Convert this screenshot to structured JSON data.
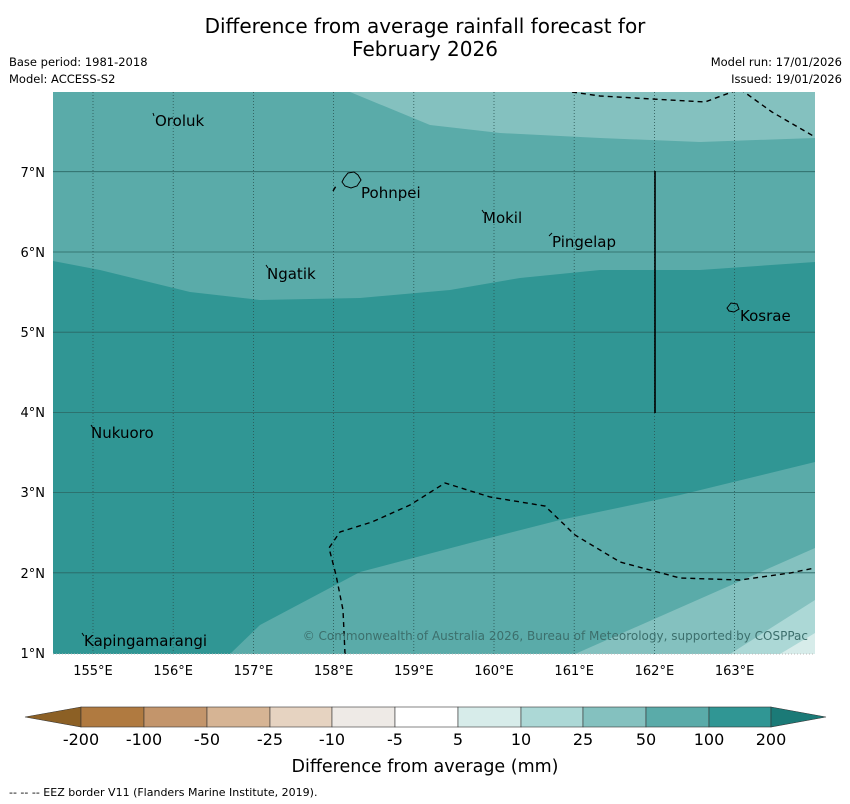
{
  "title": {
    "line1": "Difference from average rainfall forecast for",
    "line2": "February 2026"
  },
  "meta": {
    "base_period": "Base period: 1981-2018",
    "model": "Model: ACCESS-S2",
    "model_run": "Model run: 17/01/2026",
    "issued": "Issued: 19/01/2026"
  },
  "map": {
    "lon_labels": [
      "155°E",
      "156°E",
      "157°E",
      "158°E",
      "159°E",
      "160°E",
      "161°E",
      "162°E",
      "163°E"
    ],
    "lat_labels": [
      "1°N",
      "2°N",
      "3°N",
      "4°N",
      "5°N",
      "6°N",
      "7°N"
    ],
    "places": {
      "oroluk": "Oroluk",
      "pohnpei": "Pohnpei",
      "mokil": "Mokil",
      "pingelap": "Pingelap",
      "ngatik": "Ngatik",
      "kosrae": "Kosrae",
      "nukuoro": "Nukuoro",
      "kapingamarangi": "Kapingamarangi"
    },
    "copyright": "© Commonwealth of Australia 2026, Bureau of Meteorology, supported by COSPPac"
  },
  "colorbar": {
    "ticks": [
      "-200",
      "-100",
      "-50",
      "-25",
      "-10",
      "-5",
      "5",
      "10",
      "25",
      "50",
      "100",
      "200"
    ],
    "colors": {
      "below_200": "#8c6025",
      "c1": "#b07a40",
      "c2": "#c3956b",
      "c3": "#d6b494",
      "c4": "#e6d3c1",
      "c5": "#eeeae6",
      "c6": "#ffffff",
      "c7": "#d7ecea",
      "c8": "#acd8d6",
      "c9": "#84c1bf",
      "c10": "#5aaba9",
      "c11": "#309694",
      "above_200": "#1b7a77"
    },
    "label": "Difference from average (mm)"
  },
  "footnote": "--  --  -- EEZ border V11 (Flanders Marine Institute, 2019)."
}
